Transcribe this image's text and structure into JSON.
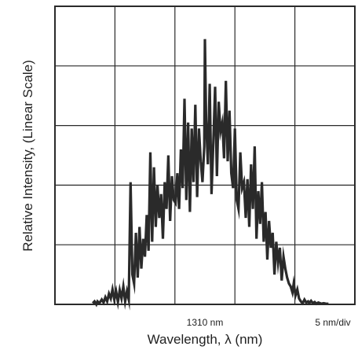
{
  "chart_data": {
    "type": "line",
    "title": "",
    "xlabel": "Wavelength, λ (nm)",
    "ylabel": "Relative Intensity, (Linear Scale)",
    "x_center_label": "1310 nm",
    "x_scale_label": "5 nm/div",
    "x_unit": "nm",
    "xlim": [
      1285,
      1335
    ],
    "ylim": [
      0,
      5
    ],
    "grid": true,
    "x_divisions": 10,
    "y_divisions": 5,
    "colors": {
      "trace": "#2a2a2a",
      "grid": "#2a2a2a",
      "frame": "#2a2a2a"
    },
    "series": [
      {
        "x": [
          1291.3,
          1291.6,
          1291.9,
          1292.1,
          1292.4,
          1292.8,
          1293.1,
          1293.4,
          1293.7,
          1294.0,
          1294.3,
          1294.6,
          1294.9,
          1295.2,
          1295.5,
          1295.8,
          1296.1,
          1296.4,
          1296.7,
          1297.0,
          1297.3,
          1297.6,
          1297.9,
          1298.2,
          1298.5,
          1298.8,
          1299.1,
          1299.4,
          1299.7,
          1300.0,
          1300.3,
          1300.6,
          1300.9,
          1301.2,
          1301.5,
          1301.8,
          1302.1,
          1302.4,
          1302.7,
          1303.0,
          1303.3,
          1303.6,
          1303.9,
          1304.2,
          1304.5,
          1304.8,
          1305.1,
          1305.4,
          1305.7,
          1306.0,
          1306.3,
          1306.6,
          1306.9,
          1307.2,
          1307.5,
          1307.8,
          1308.1,
          1308.4,
          1308.7,
          1309.0,
          1309.3,
          1309.6,
          1309.9,
          1310.0,
          1310.2,
          1310.5,
          1310.8,
          1311.1,
          1311.4,
          1311.7,
          1312.0,
          1312.3,
          1312.6,
          1312.9,
          1313.2,
          1313.5,
          1313.8,
          1314.1,
          1314.4,
          1314.7,
          1315.0,
          1315.3,
          1315.6,
          1315.9,
          1316.2,
          1316.5,
          1316.8,
          1317.1,
          1317.4,
          1317.7,
          1318.0,
          1318.3,
          1318.6,
          1318.9,
          1319.2,
          1319.5,
          1319.8,
          1320.1,
          1320.4,
          1320.7,
          1321.0,
          1321.3,
          1321.6,
          1321.9,
          1322.2,
          1322.5,
          1322.8,
          1323.1,
          1323.4,
          1323.7,
          1324.0,
          1324.3,
          1324.6,
          1324.8,
          1325.1,
          1325.4,
          1325.7,
          1326.0,
          1326.3,
          1326.6,
          1326.9,
          1327.2,
          1327.4,
          1327.7,
          1328.0,
          1328.3,
          1328.6,
          1328.9,
          1329.2,
          1329.4,
          1329.8,
          1330.2,
          1330.6
        ],
        "y": [
          0.02,
          0.05,
          0.0,
          0.05,
          0.02,
          0.08,
          0.03,
          0.12,
          0.05,
          0.18,
          0.1,
          0.25,
          0.08,
          0.22,
          0.04,
          0.24,
          0.1,
          0.3,
          0.05,
          0.22,
          0.08,
          2.05,
          0.5,
          0.35,
          1.2,
          0.45,
          1.3,
          0.6,
          1.1,
          0.8,
          1.5,
          0.9,
          2.55,
          1.05,
          2.3,
          1.3,
          2.0,
          1.45,
          1.85,
          1.1,
          2.05,
          1.6,
          2.5,
          1.4,
          2.15,
          1.75,
          1.7,
          2.2,
          1.6,
          2.6,
          1.95,
          3.45,
          1.75,
          3.05,
          1.55,
          2.95,
          2.05,
          3.35,
          1.8,
          2.95,
          2.4,
          2.05,
          2.65,
          4.45,
          3.1,
          2.35,
          3.7,
          1.85,
          2.7,
          3.65,
          2.15,
          3.4,
          2.9,
          3.05,
          2.45,
          3.75,
          2.4,
          3.25,
          2.2,
          1.95,
          2.95,
          1.75,
          1.6,
          2.55,
          1.95,
          2.05,
          1.45,
          2.1,
          1.3,
          2.35,
          1.6,
          2.65,
          1.1,
          1.9,
          1.35,
          2.05,
          1.05,
          1.55,
          0.75,
          1.4,
          0.95,
          1.2,
          0.5,
          1.05,
          0.7,
          0.95,
          0.4,
          0.8,
          0.6,
          0.45,
          0.35,
          0.3,
          0.2,
          0.35,
          0.15,
          0.25,
          0.1,
          0.05,
          0.02,
          0.08,
          0.03,
          0.05,
          0.02,
          0.06,
          0.02,
          0.04,
          0.01,
          0.03,
          0.02,
          0.01,
          0.02,
          0.01,
          0.01
        ]
      }
    ]
  }
}
